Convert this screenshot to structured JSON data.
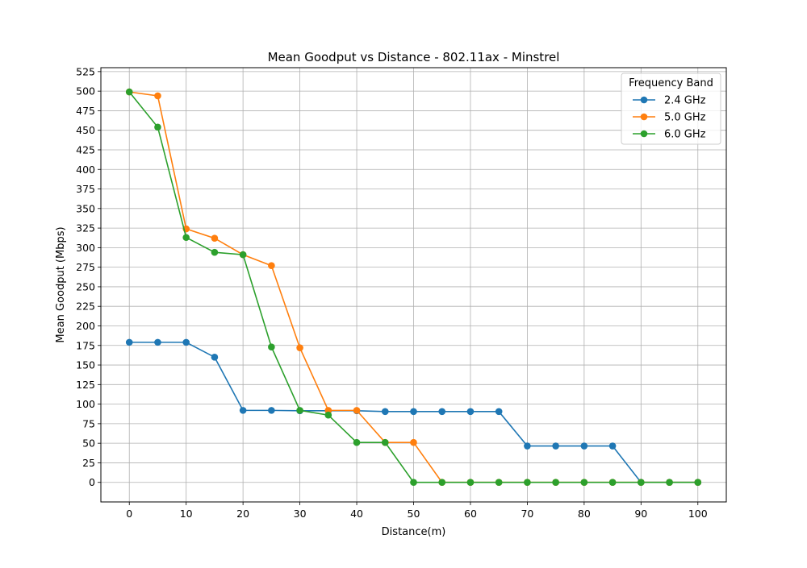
{
  "chart_data": {
    "type": "line",
    "title": "Mean Goodput vs Distance - 802.11ax - Minstrel",
    "xlabel": "Distance(m)",
    "ylabel": "Mean Goodput (Mbps)",
    "xlim": [
      -5,
      105
    ],
    "ylim": [
      -25,
      530
    ],
    "xticks": [
      0,
      10,
      20,
      30,
      40,
      50,
      60,
      70,
      80,
      90,
      100
    ],
    "yticks": [
      0,
      25,
      50,
      75,
      100,
      125,
      150,
      175,
      200,
      225,
      250,
      275,
      300,
      325,
      350,
      375,
      400,
      425,
      450,
      475,
      500,
      525
    ],
    "grid": true,
    "legend": {
      "title": "Frequency Band",
      "placement": "top-right"
    },
    "x": [
      0,
      5,
      10,
      15,
      20,
      25,
      30,
      35,
      40,
      45,
      50,
      55,
      60,
      65,
      70,
      75,
      80,
      85,
      90,
      95,
      100
    ],
    "series": [
      {
        "name": "2.4 GHz",
        "color": "#1f77b4",
        "values": [
          179,
          179,
          179,
          160,
          92,
          92,
          91.5,
          91.5,
          91.5,
          90.5,
          90.5,
          90.5,
          90.5,
          90.5,
          46.5,
          46.5,
          46.5,
          46.5,
          0,
          0,
          0
        ]
      },
      {
        "name": "5.0 GHz",
        "color": "#ff7f0e",
        "values": [
          499,
          494,
          324,
          312,
          291,
          277,
          172,
          92,
          92,
          51,
          51,
          0,
          0,
          0,
          0,
          0,
          0,
          0,
          0,
          0,
          0
        ]
      },
      {
        "name": "6.0 GHz",
        "color": "#2ca02c",
        "values": [
          499,
          454,
          313,
          294,
          291,
          173,
          92,
          86,
          51,
          51,
          0,
          0,
          0,
          0,
          0,
          0,
          0,
          0,
          0,
          0,
          0
        ]
      }
    ]
  }
}
